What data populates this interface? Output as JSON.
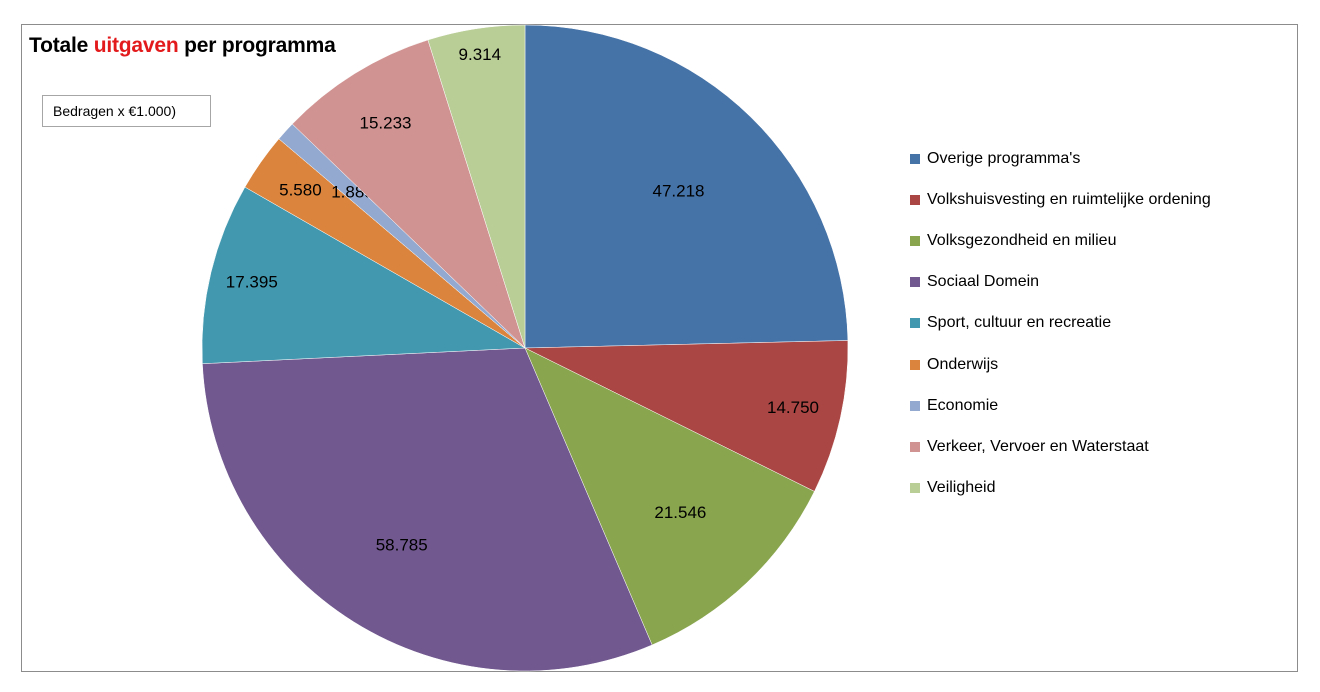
{
  "header": {
    "title_part1": "Totale ",
    "title_highlight": "uitgaven",
    "title_part2": " per programma",
    "note": "Bedragen x €1.000)"
  },
  "chart_data": {
    "type": "pie",
    "title": "Totale uitgaven per programma",
    "subtitle": "Bedragen x €1.000)",
    "legend_position": "right",
    "start_angle_deg": 0,
    "direction": "clockwise",
    "slices": [
      {
        "label": "Overige programma's",
        "value": 47218,
        "display": "47.218",
        "color": "#4572A7"
      },
      {
        "label": "Volkshuisvesting en ruimtelijke ordening",
        "value": 14750,
        "display": "14.750",
        "color": "#AA4643"
      },
      {
        "label": "Volksgezondheid en milieu",
        "value": 21546,
        "display": "21.546",
        "color": "#89A54E"
      },
      {
        "label": "Sociaal Domein",
        "value": 58785,
        "display": "58.785",
        "color": "#71588F"
      },
      {
        "label": "Sport, cultuur en recreatie",
        "value": 17395,
        "display": "17.395",
        "color": "#4198AF"
      },
      {
        "label": "Onderwijs",
        "value": 5580,
        "display": "5.580",
        "color": "#DB843D"
      },
      {
        "label": "Economie",
        "value": 1889,
        "display": "1.889",
        "color": "#93A9CF"
      },
      {
        "label": "Verkeer, Vervoer en Waterstaat",
        "value": 15233,
        "display": "15.233",
        "color": "#D19392"
      },
      {
        "label": "Veiligheid",
        "value": 9314,
        "display": "9.314",
        "color": "#B9CD96"
      }
    ]
  }
}
